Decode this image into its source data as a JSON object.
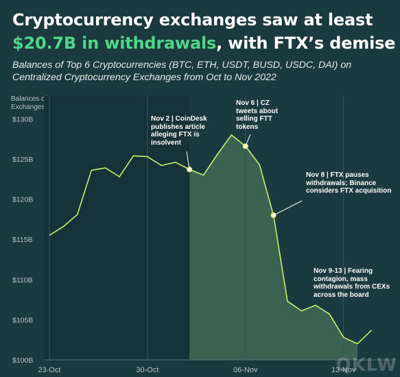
{
  "header": {
    "title_line1": "Cryptocurrency exchanges saw at least",
    "title_accent": "$20.7B in withdrawals",
    "title_rest": ", with FTX’s demise",
    "subtitle": "Balances of Top 6 Cryptocurrencies (BTC, ETH, USDT, BUSD, USDC, DAI) on Centralized Cryptocurrency Exchanges from Oct to Nov 2022"
  },
  "watermark": "QKLW",
  "chart_data": {
    "type": "line",
    "ylabel": "Balances of Exchanges",
    "ylim": [
      100,
      132
    ],
    "yticks": [
      100,
      105,
      110,
      115,
      120,
      125,
      130
    ],
    "ytick_labels": [
      "$100B",
      "$105B",
      "$110B",
      "$115B",
      "$120B",
      "$125B",
      "$130B"
    ],
    "xticks": [
      {
        "day": 0,
        "label": "23-Oct"
      },
      {
        "day": 7,
        "label": "30-Oct"
      },
      {
        "day": 14,
        "label": "06-Nov"
      },
      {
        "day": 21,
        "label": "13-Nov"
      }
    ],
    "x_range": [
      0,
      24.2
    ],
    "grid": "vertical",
    "line_color": "#c9f06a",
    "shaded_range": [
      "Nov 2",
      "Nov 14"
    ],
    "series": [
      {
        "x": [
          "Oct 23",
          "Oct 24",
          "Oct 25",
          "Oct 26",
          "Oct 27",
          "Oct 28",
          "Oct 29",
          "Oct 30",
          "Oct 31",
          "Nov 1",
          "Nov 2",
          "Nov 3",
          "Nov 4",
          "Nov 5",
          "Nov 6",
          "Nov 7",
          "Nov 8",
          "Nov 9",
          "Nov 10",
          "Nov 11",
          "Nov 12",
          "Nov 13",
          "Nov 14",
          "Nov 15"
        ],
        "values": [
          115.5,
          116.6,
          118.1,
          123.6,
          123.9,
          122.8,
          125.4,
          125.3,
          124.2,
          124.6,
          123.7,
          123.0,
          125.6,
          128.0,
          126.6,
          124.3,
          118.0,
          107.3,
          106.1,
          106.8,
          105.7,
          102.8,
          102.0,
          103.7
        ]
      }
    ],
    "annotations": [
      {
        "text": "Nov 2 | CoinDesk publishes article alleging FTX is insolvent",
        "point": 10
      },
      {
        "text": "Nov 6 | CZ tweets about selling FTT tokens",
        "point": 14
      },
      {
        "text": "Nov 8 | FTX pauses withdrawals; Binance considers FTX acquisition",
        "point": 16
      },
      {
        "text": "Nov 9-13 | Fearing contagion, mass withdrawals from CEXs across the board",
        "point": null
      }
    ]
  }
}
